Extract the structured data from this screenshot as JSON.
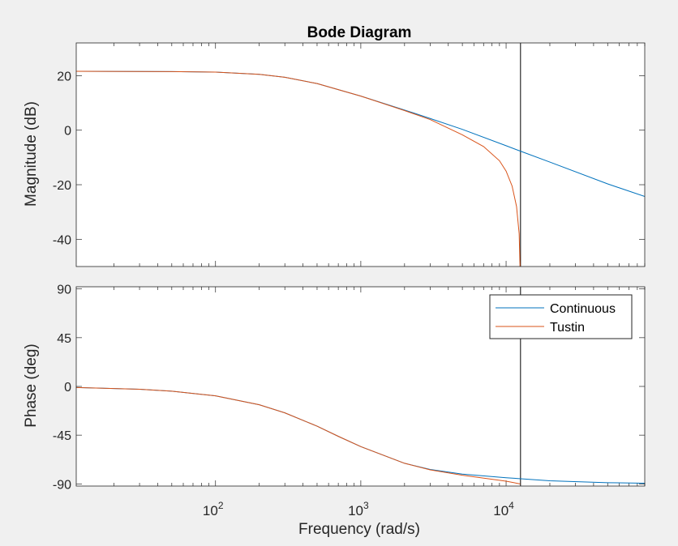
{
  "chart_data": {
    "type": "line",
    "title": "Bode Diagram",
    "xlabel": "Frequency  (rad/s)",
    "xscale": "log",
    "xlim": [
      11,
      90000
    ],
    "x_ticks": [
      {
        "value": 100,
        "base": "10",
        "exp": "2"
      },
      {
        "value": 1000,
        "base": "10",
        "exp": "3"
      },
      {
        "value": 10000,
        "base": "10",
        "exp": "4"
      }
    ],
    "nyquist_marker": 12566,
    "legend": {
      "position": "top-right",
      "entries": [
        "Continuous",
        "Tustin"
      ]
    },
    "colors": {
      "Continuous": "#0072BD",
      "Tustin": "#D95319",
      "nyquist_line": "#000000"
    },
    "grid": false,
    "subplots": [
      {
        "id": "magnitude",
        "ylabel": "Magnitude (dB)",
        "ylim": [
          -50,
          32
        ],
        "y_ticks": [
          20,
          0,
          -20,
          -40
        ],
        "y_tick_labels": [
          "20",
          "0",
          "-20",
          "-40"
        ],
        "series": [
          {
            "name": "Continuous",
            "x": [
              11,
              50,
              100,
              200,
              300,
              500,
              1000,
              2000,
              3000,
              5000,
              10000,
              12566,
              20000,
              50000,
              90000
            ],
            "y": [
              21.6,
              21.5,
              21.3,
              20.5,
              19.4,
              17.1,
              12.5,
              7.4,
              4.3,
              0.3,
              -5.7,
              -7.7,
              -11.7,
              -19.7,
              -24.3
            ]
          },
          {
            "name": "Tustin",
            "x": [
              11,
              50,
              100,
              200,
              300,
              500,
              1000,
              2000,
              3000,
              5000,
              7000,
              9000,
              10000,
              11000,
              11800,
              12300,
              12500
            ],
            "y": [
              21.6,
              21.5,
              21.3,
              20.5,
              19.4,
              17.1,
              12.5,
              7.2,
              3.9,
              -1.7,
              -6.0,
              -11.2,
              -15.0,
              -20.5,
              -28.0,
              -38.0,
              -52.0
            ]
          }
        ]
      },
      {
        "id": "phase",
        "ylabel": "Phase (deg)",
        "ylim": [
          -92,
          92
        ],
        "y_ticks": [
          90,
          45,
          0,
          -45,
          -90
        ],
        "y_tick_labels": [
          "90",
          "45",
          "0",
          "-45",
          "-90"
        ],
        "series": [
          {
            "name": "Continuous",
            "x": [
              11,
              30,
              50,
              100,
              200,
              300,
              500,
              700,
              1000,
              2000,
              3000,
              5000,
              10000,
              20000,
              50000,
              90000
            ],
            "y": [
              -1.0,
              -2.6,
              -4.4,
              -8.7,
              -16.9,
              -24.4,
              -36.7,
              -46.1,
              -55.6,
              -71.0,
              -76.7,
              -81.0,
              -84.3,
              -87.1,
              -88.9,
              -89.4
            ]
          },
          {
            "name": "Tustin",
            "x": [
              11,
              30,
              50,
              100,
              200,
              300,
              500,
              700,
              1000,
              2000,
              3000,
              5000,
              10000,
              12500
            ],
            "y": [
              -1.0,
              -2.6,
              -4.4,
              -8.7,
              -16.9,
              -24.4,
              -36.7,
              -46.1,
              -55.6,
              -71.0,
              -77.0,
              -82.0,
              -87.5,
              -90.0
            ]
          }
        ]
      }
    ]
  }
}
